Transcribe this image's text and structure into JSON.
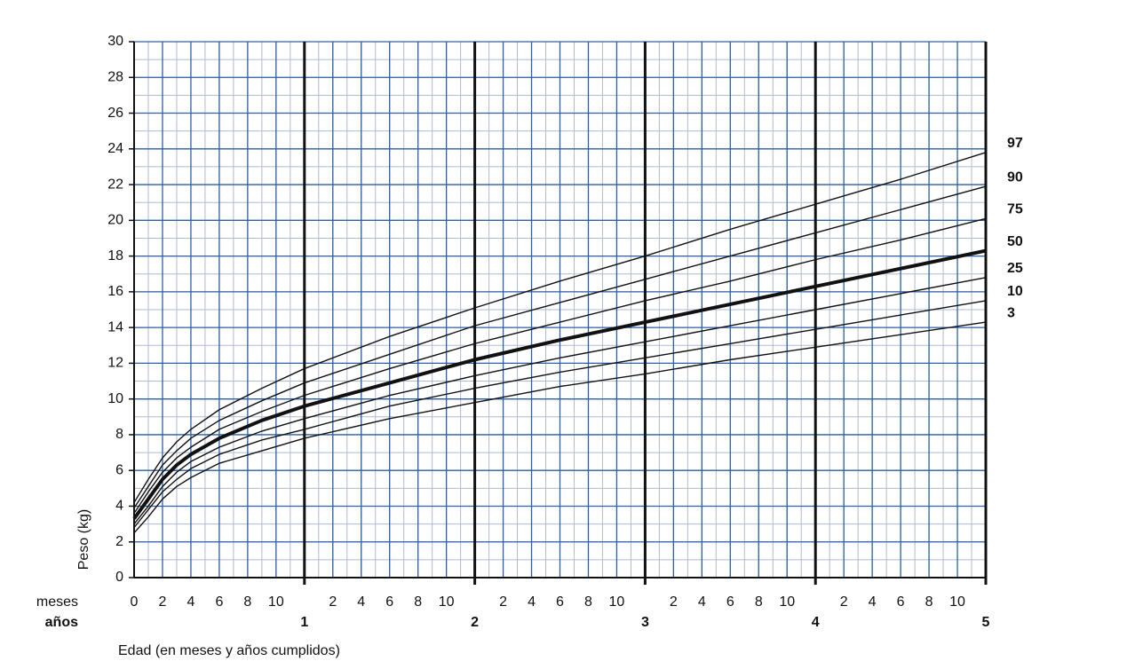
{
  "chart_data": {
    "type": "line",
    "x_axis_label": "Edad (en meses y años cumplidos)",
    "y_axis_label": "Peso (kg)",
    "month_row_label": "meses",
    "year_row_label": "años",
    "x": [
      0,
      1,
      2,
      3,
      4,
      6,
      9,
      12,
      18,
      24,
      30,
      36,
      42,
      48,
      54,
      60
    ],
    "series": [
      {
        "name": "97",
        "color": "#111111",
        "values": [
          4.2,
          5.5,
          6.7,
          7.6,
          8.3,
          9.4,
          10.6,
          11.7,
          13.5,
          15.1,
          16.6,
          18.0,
          19.5,
          20.9,
          22.3,
          23.8
        ]
      },
      {
        "name": "90",
        "color": "#111111",
        "values": [
          3.9,
          5.1,
          6.3,
          7.1,
          7.8,
          8.8,
          9.9,
          10.9,
          12.5,
          14.1,
          15.4,
          16.7,
          18.0,
          19.3,
          20.6,
          21.9
        ]
      },
      {
        "name": "75",
        "color": "#111111",
        "values": [
          3.6,
          4.8,
          5.9,
          6.7,
          7.3,
          8.3,
          9.3,
          10.2,
          11.7,
          13.1,
          14.3,
          15.5,
          16.6,
          17.8,
          18.9,
          20.1
        ]
      },
      {
        "name": "50",
        "color": "#111111",
        "emphasis": true,
        "values": [
          3.3,
          4.4,
          5.5,
          6.3,
          6.9,
          7.8,
          8.8,
          9.6,
          10.9,
          12.2,
          13.3,
          14.3,
          15.3,
          16.3,
          17.3,
          18.3
        ]
      },
      {
        "name": "25",
        "color": "#111111",
        "values": [
          3.0,
          4.0,
          5.1,
          5.9,
          6.5,
          7.3,
          8.2,
          8.9,
          10.2,
          11.3,
          12.3,
          13.2,
          14.1,
          15.0,
          15.9,
          16.8
        ]
      },
      {
        "name": "10",
        "color": "#111111",
        "values": [
          2.8,
          3.8,
          4.8,
          5.5,
          6.1,
          6.9,
          7.7,
          8.3,
          9.6,
          10.6,
          11.5,
          12.3,
          13.1,
          13.9,
          14.7,
          15.5
        ]
      },
      {
        "name": "3",
        "color": "#111111",
        "values": [
          2.5,
          3.4,
          4.4,
          5.1,
          5.6,
          6.4,
          7.1,
          7.8,
          8.9,
          9.8,
          10.7,
          11.4,
          12.2,
          12.9,
          13.6,
          14.3
        ]
      }
    ],
    "xlim": [
      0,
      60
    ],
    "ylim": [
      0,
      30
    ],
    "yticks": [
      0,
      2,
      4,
      6,
      8,
      10,
      12,
      14,
      16,
      18,
      20,
      22,
      24,
      26,
      28,
      30
    ],
    "xticks": [
      0,
      2,
      4,
      6,
      8,
      10,
      {
        "value": 14,
        "label": "2"
      },
      {
        "value": 16,
        "label": "4"
      },
      {
        "value": 18,
        "label": "6"
      },
      {
        "value": 20,
        "label": "8"
      },
      {
        "value": 22,
        "label": "10"
      },
      {
        "value": 26,
        "label": "2"
      },
      {
        "value": 28,
        "label": "4"
      },
      {
        "value": 30,
        "label": "6"
      },
      {
        "value": 32,
        "label": "8"
      },
      {
        "value": 34,
        "label": "10"
      },
      {
        "value": 38,
        "label": "2"
      },
      {
        "value": 40,
        "label": "4"
      },
      {
        "value": 42,
        "label": "6"
      },
      {
        "value": 44,
        "label": "8"
      },
      {
        "value": 46,
        "label": "10"
      },
      {
        "value": 50,
        "label": "2"
      },
      {
        "value": 52,
        "label": "4"
      },
      {
        "value": 54,
        "label": "6"
      },
      {
        "value": 56,
        "label": "8"
      },
      {
        "value": 58,
        "label": "10"
      }
    ],
    "year_ticks": [
      {
        "value": 12,
        "label": "1"
      },
      {
        "value": 24,
        "label": "2"
      },
      {
        "value": 36,
        "label": "3"
      },
      {
        "value": 48,
        "label": "4"
      },
      {
        "value": 60,
        "label": "5"
      }
    ],
    "grid": true,
    "grid_color": "#2f5fa5"
  }
}
